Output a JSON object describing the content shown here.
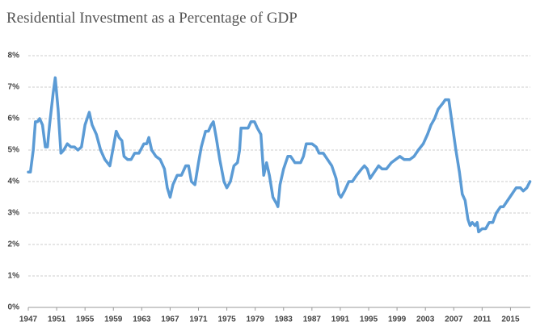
{
  "chart_data": {
    "type": "line",
    "title": "Residential Investment as a Percentage of GDP",
    "color": "#5b9bd5",
    "grid": true,
    "xlim": [
      1947,
      2017.8
    ],
    "xticks": [
      1947,
      1951,
      1955,
      1959,
      1963,
      1967,
      1971,
      1975,
      1979,
      1983,
      1987,
      1991,
      1995,
      1999,
      2003,
      2007,
      2011,
      2015
    ],
    "ylim": [
      0,
      8
    ],
    "yticks": [
      {
        "value": 0,
        "label": "0%"
      },
      {
        "value": 1,
        "label": "1%"
      },
      {
        "value": 2,
        "label": "2%"
      },
      {
        "value": 3,
        "label": "3%"
      },
      {
        "value": 4,
        "label": "4%"
      },
      {
        "value": 5,
        "label": "5%"
      },
      {
        "value": 6,
        "label": "6%"
      },
      {
        "value": 7,
        "label": "7%"
      },
      {
        "value": 8,
        "label": "8%"
      }
    ],
    "x": [
      1947,
      1947.3,
      1947.7,
      1948,
      1948.3,
      1948.6,
      1949,
      1949.4,
      1949.7,
      1950,
      1950.5,
      1950.8,
      1951.2,
      1951.6,
      1952,
      1952.5,
      1953,
      1953.5,
      1954,
      1954.5,
      1955,
      1955.6,
      1956,
      1956.6,
      1957.2,
      1957.8,
      1958.5,
      1959,
      1959.4,
      1959.8,
      1960.2,
      1960.5,
      1961,
      1961.5,
      1962,
      1962.6,
      1963.3,
      1963.7,
      1964,
      1964.4,
      1965,
      1965.6,
      1966.2,
      1966.6,
      1967,
      1967.4,
      1968,
      1968.6,
      1969.2,
      1969.6,
      1970,
      1970.5,
      1971,
      1971.4,
      1972,
      1972.4,
      1972.8,
      1973.1,
      1973.5,
      1974,
      1974.6,
      1975,
      1975.5,
      1976,
      1976.5,
      1976.8,
      1977,
      1977.5,
      1978,
      1978.4,
      1978.9,
      1979.3,
      1979.8,
      1980.2,
      1980.6,
      1981,
      1981.5,
      1982,
      1982.2,
      1982.5,
      1983,
      1983.6,
      1984,
      1984.6,
      1985.4,
      1985.8,
      1986.2,
      1987,
      1987.6,
      1988,
      1988.6,
      1989.2,
      1989.8,
      1990.4,
      1990.8,
      1991.1,
      1991.6,
      1992.2,
      1992.7,
      1993.3,
      1994,
      1994.4,
      1994.8,
      1995.2,
      1995.8,
      1996.4,
      1996.9,
      1997.5,
      1998.2,
      1998.8,
      1999.4,
      2000,
      2000.8,
      2001.4,
      2002,
      2002.7,
      2003.3,
      2003.8,
      2004.3,
      2004.8,
      2005.5,
      2005.8,
      2006.3,
      2006.8,
      2007.3,
      2007.8,
      2008.2,
      2008.6,
      2009,
      2009.3,
      2009.6,
      2010,
      2010.3,
      2010.5,
      2011,
      2011.5,
      2012,
      2012.5,
      2013,
      2013.6,
      2014,
      2014.6,
      2015.2,
      2015.8,
      2016.4,
      2016.8,
      2017.3,
      2017.75
    ],
    "values": [
      4.3,
      4.3,
      5.0,
      5.9,
      5.9,
      6.0,
      5.8,
      5.1,
      5.1,
      5.8,
      6.8,
      7.3,
      6.3,
      4.9,
      5.0,
      5.2,
      5.1,
      5.1,
      5.0,
      5.1,
      5.8,
      6.2,
      5.8,
      5.5,
      5.0,
      4.7,
      4.5,
      5.1,
      5.6,
      5.4,
      5.3,
      4.8,
      4.7,
      4.7,
      4.9,
      4.9,
      5.2,
      5.2,
      5.4,
      5.0,
      4.8,
      4.7,
      4.4,
      3.8,
      3.5,
      3.9,
      4.2,
      4.2,
      4.5,
      4.5,
      4.0,
      3.9,
      4.6,
      5.1,
      5.6,
      5.6,
      5.8,
      5.9,
      5.4,
      4.7,
      4.0,
      3.8,
      4.0,
      4.5,
      4.6,
      5.0,
      5.7,
      5.7,
      5.7,
      5.9,
      5.9,
      5.7,
      5.5,
      4.2,
      4.6,
      4.2,
      3.5,
      3.3,
      3.2,
      3.9,
      4.4,
      4.8,
      4.8,
      4.6,
      4.6,
      4.8,
      5.2,
      5.2,
      5.1,
      4.9,
      4.9,
      4.7,
      4.5,
      4.1,
      3.6,
      3.5,
      3.7,
      4.0,
      4.0,
      4.2,
      4.4,
      4.5,
      4.4,
      4.1,
      4.3,
      4.5,
      4.4,
      4.4,
      4.6,
      4.7,
      4.8,
      4.7,
      4.7,
      4.8,
      5.0,
      5.2,
      5.5,
      5.8,
      6.0,
      6.3,
      6.5,
      6.6,
      6.6,
      5.8,
      5.0,
      4.3,
      3.6,
      3.4,
      2.8,
      2.6,
      2.7,
      2.6,
      2.7,
      2.4,
      2.5,
      2.5,
      2.7,
      2.7,
      3.0,
      3.2,
      3.2,
      3.4,
      3.6,
      3.8,
      3.8,
      3.7,
      3.8,
      4.0
    ]
  }
}
